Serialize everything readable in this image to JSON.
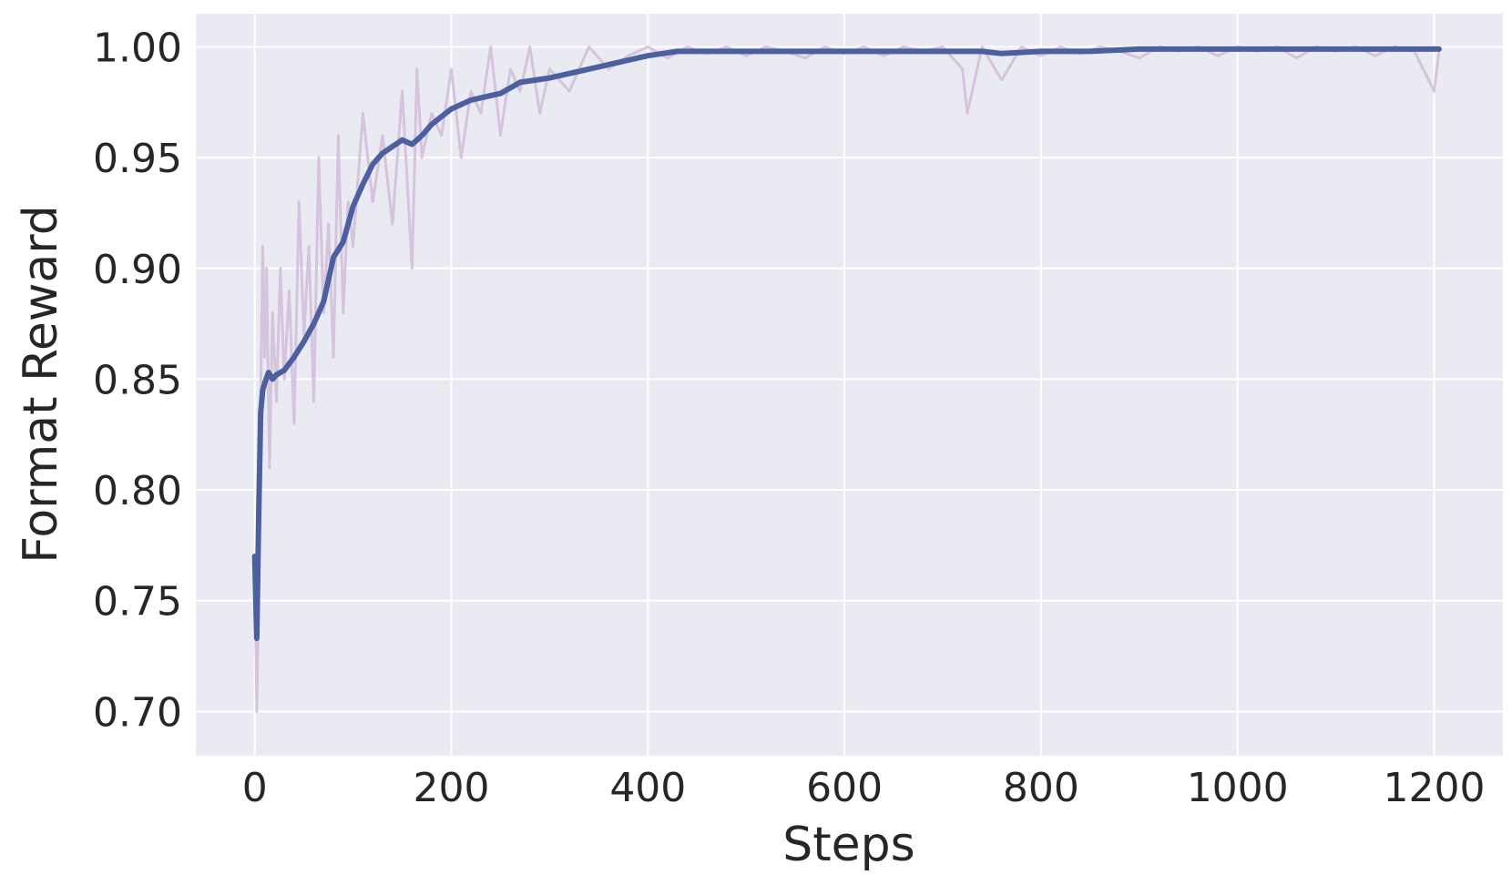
{
  "chart_data": {
    "type": "line",
    "title": "",
    "xlabel": "Steps",
    "ylabel": "Format Reward",
    "xlim": [
      -60,
      1270
    ],
    "ylim": [
      0.68,
      1.015
    ],
    "xticks": [
      0,
      200,
      400,
      600,
      800,
      1000,
      1200
    ],
    "xtick_labels": [
      "0",
      "200",
      "400",
      "600",
      "800",
      "1000",
      "1200"
    ],
    "yticks": [
      0.7,
      0.75,
      0.8,
      0.85,
      0.9,
      0.95,
      1.0
    ],
    "ytick_labels": [
      "0.70",
      "0.75",
      "0.80",
      "0.85",
      "0.90",
      "0.95",
      "1.00"
    ],
    "grid": true,
    "background": "#EAEAF2",
    "grid_color": "#FFFFFF",
    "series": [
      {
        "role": "raw",
        "color": "#D4BFDB",
        "x": [
          0,
          2,
          4,
          6,
          8,
          10,
          12,
          15,
          18,
          22,
          26,
          30,
          35,
          40,
          45,
          50,
          55,
          60,
          65,
          70,
          75,
          80,
          85,
          90,
          95,
          100,
          110,
          120,
          130,
          140,
          150,
          160,
          165,
          170,
          180,
          190,
          200,
          210,
          220,
          230,
          240,
          250,
          260,
          270,
          280,
          290,
          300,
          320,
          340,
          360,
          380,
          400,
          420,
          440,
          460,
          480,
          500,
          520,
          540,
          560,
          580,
          600,
          620,
          640,
          660,
          680,
          700,
          720,
          725,
          740,
          760,
          780,
          800,
          820,
          840,
          860,
          880,
          900,
          920,
          940,
          960,
          980,
          1000,
          1020,
          1040,
          1060,
          1080,
          1100,
          1120,
          1140,
          1160,
          1180,
          1200,
          1205
        ],
        "y": [
          0.77,
          0.7,
          0.76,
          0.84,
          0.91,
          0.86,
          0.9,
          0.81,
          0.88,
          0.84,
          0.9,
          0.85,
          0.89,
          0.83,
          0.93,
          0.87,
          0.91,
          0.84,
          0.95,
          0.88,
          0.92,
          0.86,
          0.96,
          0.88,
          0.93,
          0.91,
          0.97,
          0.93,
          0.96,
          0.92,
          0.98,
          0.9,
          0.99,
          0.95,
          0.97,
          0.96,
          0.99,
          0.95,
          0.98,
          0.97,
          1.0,
          0.96,
          0.99,
          0.98,
          1.0,
          0.97,
          0.99,
          0.98,
          1.0,
          0.99,
          0.996,
          1.0,
          0.995,
          1.0,
          0.997,
          1.0,
          0.996,
          1.0,
          0.998,
          0.995,
          1.0,
          0.997,
          1.0,
          0.996,
          1.0,
          0.998,
          1.0,
          0.99,
          0.97,
          1.0,
          0.985,
          1.0,
          0.996,
          1.0,
          0.997,
          1.0,
          0.998,
          0.995,
          1.0,
          0.998,
          1.0,
          0.996,
          1.0,
          0.998,
          1.0,
          0.995,
          1.0,
          0.998,
          1.0,
          0.996,
          1.0,
          0.998,
          0.98,
          0.998
        ]
      },
      {
        "role": "smoothed",
        "color": "#4C5F9E",
        "x": [
          0,
          2,
          4,
          6,
          8,
          10,
          14,
          18,
          22,
          26,
          30,
          40,
          50,
          60,
          70,
          80,
          90,
          100,
          110,
          120,
          130,
          140,
          150,
          160,
          165,
          170,
          180,
          200,
          220,
          250,
          270,
          300,
          330,
          350,
          380,
          400,
          430,
          460,
          500,
          600,
          700,
          740,
          760,
          800,
          850,
          900,
          950,
          1000,
          1100,
          1150,
          1205
        ],
        "y": [
          0.77,
          0.733,
          0.79,
          0.835,
          0.845,
          0.848,
          0.853,
          0.85,
          0.852,
          0.853,
          0.854,
          0.86,
          0.867,
          0.875,
          0.885,
          0.905,
          0.912,
          0.928,
          0.938,
          0.947,
          0.952,
          0.955,
          0.958,
          0.956,
          0.958,
          0.96,
          0.965,
          0.972,
          0.976,
          0.979,
          0.984,
          0.986,
          0.989,
          0.991,
          0.994,
          0.996,
          0.998,
          0.998,
          0.998,
          0.998,
          0.998,
          0.998,
          0.997,
          0.998,
          0.998,
          0.999,
          0.999,
          0.999,
          0.999,
          0.999,
          0.999
        ]
      }
    ]
  }
}
